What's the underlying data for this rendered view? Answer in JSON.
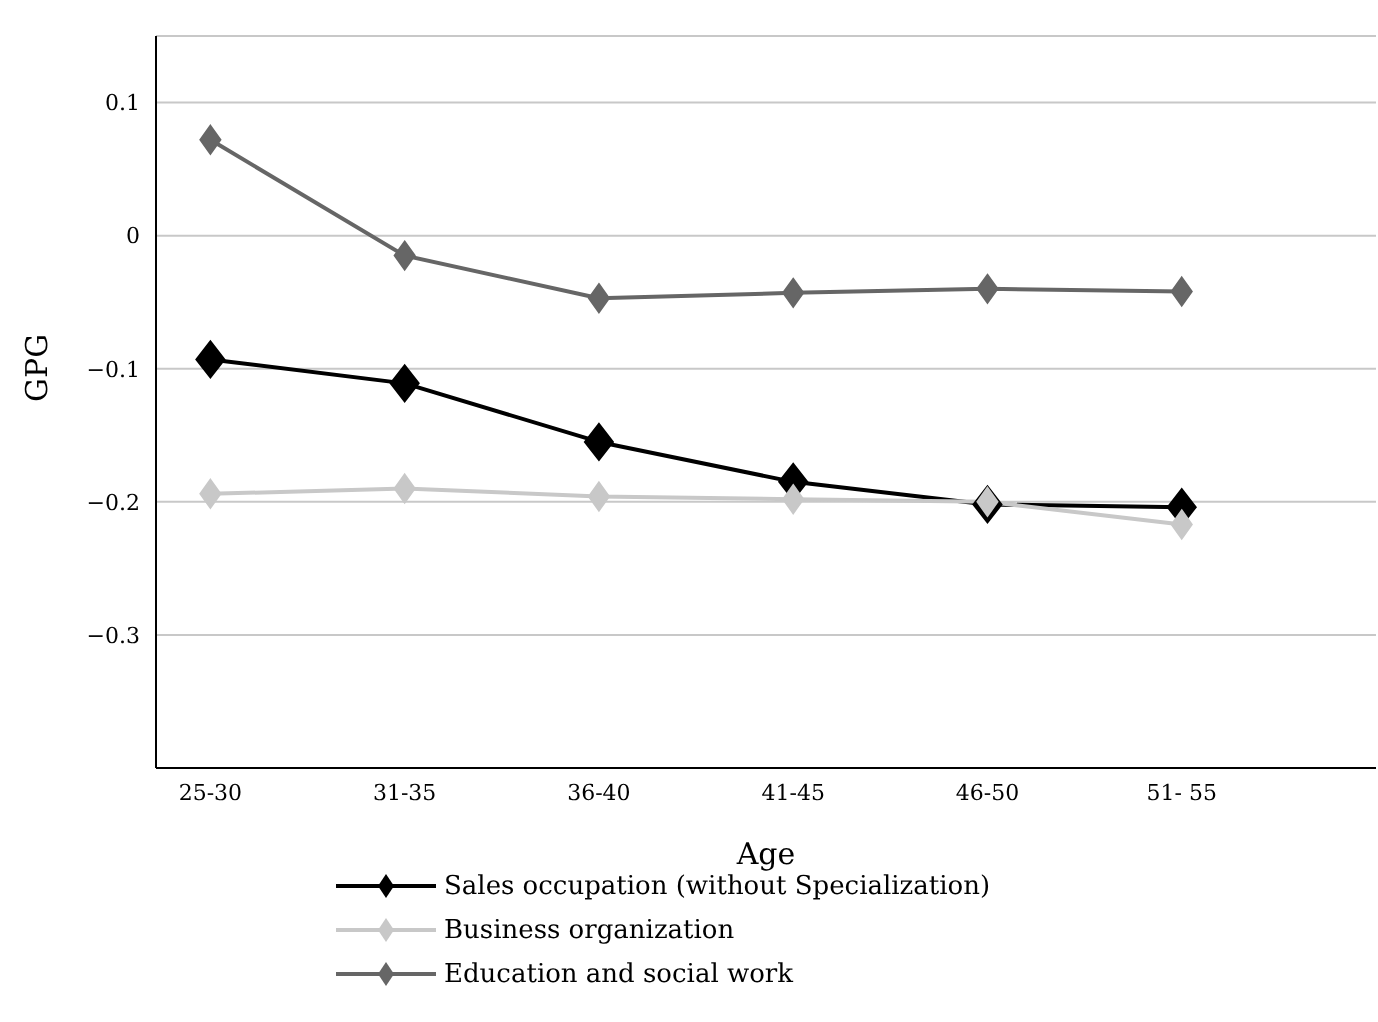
{
  "chart_data": {
    "type": "line",
    "xlabel": "Age",
    "ylabel": "GPG",
    "categories": [
      "25-30",
      "31-35",
      "36-40",
      "41-45",
      "46-50",
      "51- 55"
    ],
    "series": [
      {
        "name": "Sales occupation (without Specialization)",
        "color": "#000000",
        "values": [
          -0.093,
          -0.111,
          -0.155,
          -0.185,
          -0.202,
          -0.204
        ]
      },
      {
        "name": "Business organization",
        "color": "#c8c8c8",
        "values": [
          -0.194,
          -0.19,
          -0.196,
          -0.198,
          -0.2,
          -0.217
        ]
      },
      {
        "name": "Education and social work",
        "color": "#666666",
        "values": [
          0.072,
          -0.015,
          -0.047,
          -0.043,
          -0.04,
          -0.042
        ]
      }
    ],
    "ylim": [
      -0.4,
      0.15
    ],
    "yticks": [
      {
        "value": -0.3,
        "label": "−0.3"
      },
      {
        "value": -0.2,
        "label": "−0.2"
      },
      {
        "value": -0.1,
        "label": "−0.1"
      },
      0,
      0.1
    ],
    "grid": "y",
    "legend": "bottom",
    "marker": "diamond",
    "line_style": "solid"
  }
}
